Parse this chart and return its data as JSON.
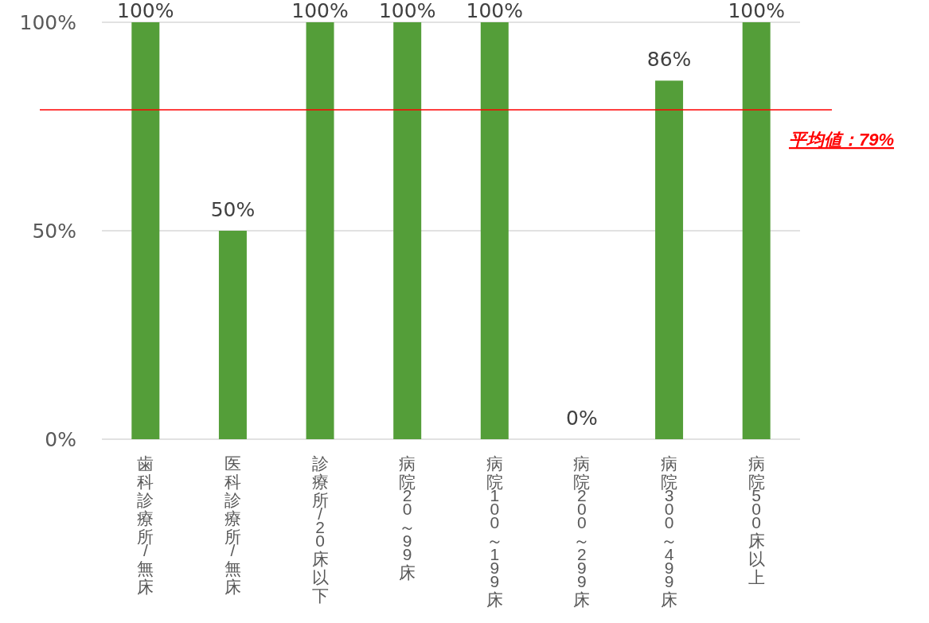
{
  "chart_data": {
    "type": "bar",
    "categories": [
      "歯科診療所/無床",
      "医科診療所/無床",
      "診療所/20床以下",
      "病院20～99床",
      "病院100～199床",
      "病院200～299床",
      "病院300～499床",
      "病院500床以上"
    ],
    "values": [
      100,
      50,
      100,
      100,
      100,
      0,
      86,
      100
    ],
    "value_labels": [
      "100%",
      "50%",
      "100%",
      "100%",
      "100%",
      "0%",
      "86%",
      "100%"
    ],
    "color": "#549e39",
    "ylim": [
      0,
      100
    ],
    "yticks": [
      {
        "value": 0,
        "label": "0%"
      },
      {
        "value": 50,
        "label": "50%"
      },
      {
        "value": 100,
        "label": "100%"
      }
    ],
    "grid": "y",
    "ref_lines": [
      {
        "axis": "y",
        "value": 79,
        "label": "平均値：79%",
        "color": "#ff0000"
      }
    ]
  }
}
